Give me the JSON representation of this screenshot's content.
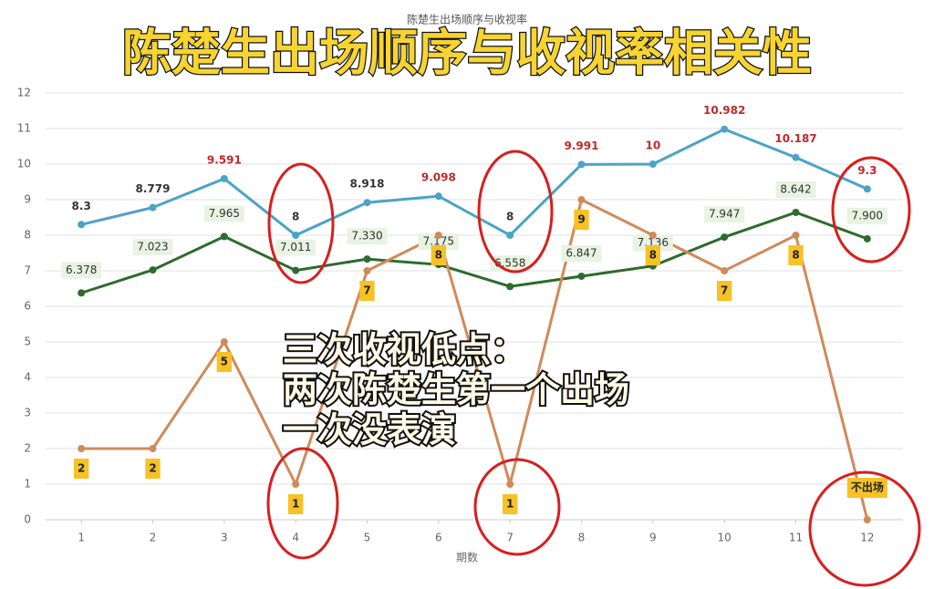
{
  "chart_data": {
    "type": "line",
    "title": "陈楚生出场顺序与收视率相关性",
    "subtitle": "陈楚生出场顺序与收视率",
    "x_label": "期数",
    "annotation": [
      "三次收视低点：",
      "两次陈楚生第一个出场",
      "一次没表演"
    ],
    "x": [
      1,
      2,
      3,
      4,
      5,
      6,
      7,
      8,
      9,
      10,
      11,
      12
    ],
    "xlim": [
      0.5,
      12.5
    ],
    "xticks": [
      1,
      2,
      3,
      4,
      5,
      6,
      7,
      8,
      9,
      10,
      11,
      12
    ],
    "ylim": [
      0,
      12
    ],
    "yticks": [
      0,
      1,
      2,
      3,
      4,
      5,
      6,
      7,
      8,
      9,
      10,
      11,
      12
    ],
    "grid": true,
    "series": [
      {
        "color": "#4ba3c7",
        "values": [
          8.3,
          8.779,
          9.591,
          8,
          8.918,
          9.098,
          8,
          9.991,
          10,
          10.982,
          10.187,
          9.3
        ]
      },
      {
        "color": "#2e6b2e",
        "values": [
          6.378,
          7.023,
          7.965,
          7.011,
          7.33,
          7.175,
          6.558,
          6.847,
          7.136,
          7.947,
          8.642,
          7.9
        ],
        "value_labels": [
          "6.378",
          "7.023",
          "7.965",
          "7.011",
          "7.330",
          "7.175",
          "6.558",
          "6.847",
          "7.136",
          "7.947",
          "8.642",
          "7.900"
        ]
      },
      {
        "color": "#d08a5a",
        "values": [
          2,
          2,
          5,
          1,
          7,
          8,
          1,
          9,
          8,
          7,
          8,
          0
        ],
        "value_labels": [
          "2",
          "2",
          "5",
          "1",
          "7",
          "8",
          "1",
          "9",
          "8",
          "7",
          "8",
          "不出场"
        ]
      }
    ]
  }
}
